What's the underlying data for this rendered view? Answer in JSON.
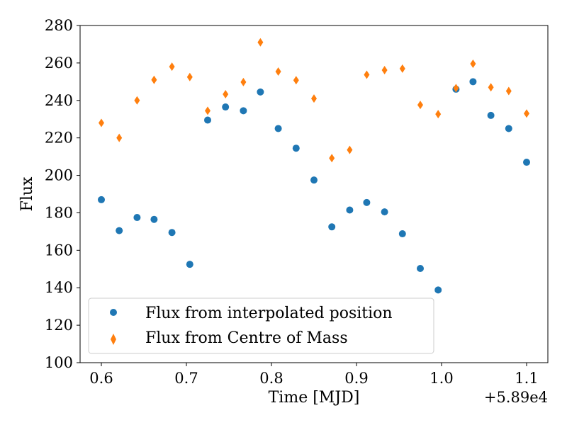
{
  "chart_data": {
    "type": "scatter",
    "xlabel": "Time [MJD]",
    "ylabel": "Flux",
    "x_offset_label": "+5.89e4",
    "xlim": [
      0.575,
      1.125
    ],
    "ylim": [
      100,
      280
    ],
    "xticks": [
      0.6,
      0.7,
      0.8,
      0.9,
      1.0,
      1.1
    ],
    "xtick_labels": [
      "0.6",
      "0.7",
      "0.8",
      "0.9",
      "1.0",
      "1.1"
    ],
    "yticks": [
      100,
      120,
      140,
      160,
      180,
      200,
      220,
      240,
      260,
      280
    ],
    "ytick_labels": [
      "100",
      "120",
      "140",
      "160",
      "180",
      "200",
      "220",
      "240",
      "260",
      "280"
    ],
    "grid": false,
    "legend_position": "lower-left",
    "series": [
      {
        "name": "Flux from interpolated position",
        "marker": "circle",
        "color": "#1f77b4",
        "x": [
          0.6,
          0.621,
          0.642,
          0.662,
          0.683,
          0.704,
          0.725,
          0.746,
          0.767,
          0.787,
          0.808,
          0.829,
          0.85,
          0.871,
          0.892,
          0.912,
          0.933,
          0.954,
          0.975,
          0.996,
          1.017,
          1.037,
          1.058,
          1.079,
          1.1
        ],
        "y": [
          187,
          170.5,
          177.5,
          176.5,
          169.5,
          152.5,
          229.5,
          236.5,
          234.5,
          244.5,
          225,
          214.5,
          197.5,
          172.5,
          181.5,
          185.5,
          180.5,
          168.8,
          150.3,
          138.8,
          246,
          250,
          232,
          225,
          207
        ]
      },
      {
        "name": "Flux from Centre of Mass",
        "marker": "thin_diamond",
        "color": "#ff7f0e",
        "x": [
          0.6,
          0.621,
          0.642,
          0.662,
          0.683,
          0.704,
          0.725,
          0.746,
          0.767,
          0.787,
          0.808,
          0.829,
          0.85,
          0.871,
          0.892,
          0.912,
          0.933,
          0.954,
          0.975,
          0.996,
          1.017,
          1.037,
          1.058,
          1.079,
          1.1
        ],
        "y": [
          228,
          220,
          240,
          251,
          258,
          252.5,
          234.5,
          243.3,
          249.8,
          271,
          255.4,
          250.8,
          241,
          209.2,
          213.6,
          253.7,
          256.2,
          257,
          237.6,
          232.7,
          246.6,
          259.6,
          247,
          245,
          233
        ]
      }
    ]
  }
}
